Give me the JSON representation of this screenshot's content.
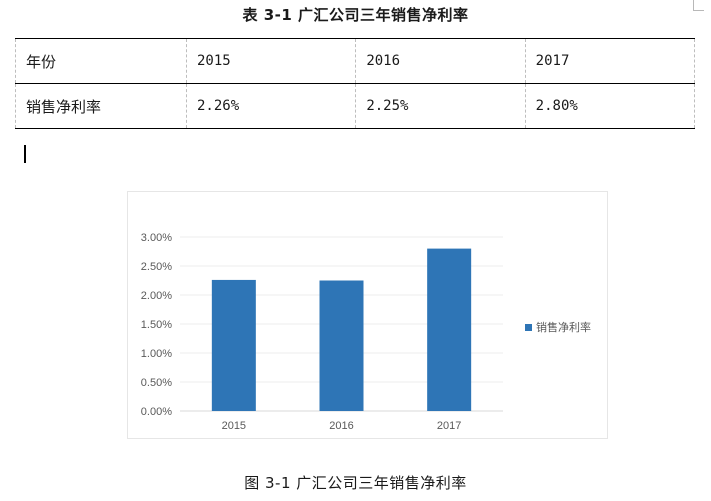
{
  "table": {
    "caption": "表 3-1 广汇公司三年销售净利率",
    "header_label": "年份",
    "row_label": "销售净利率",
    "years": [
      "2015",
      "2016",
      "2017"
    ],
    "rates": [
      "2.26%",
      "2.25%",
      "2.80%"
    ]
  },
  "figure": {
    "caption": "图 3-1 广汇公司三年销售净利率"
  },
  "chart_data": {
    "type": "bar",
    "title": "",
    "xlabel": "",
    "ylabel": "",
    "categories": [
      "2015",
      "2016",
      "2017"
    ],
    "series": [
      {
        "name": "销售净利率",
        "values": [
          2.26,
          2.25,
          2.8
        ],
        "color": "#2e75b6"
      }
    ],
    "ylim": [
      0,
      3.0
    ],
    "yticks": [
      "0.00%",
      "0.50%",
      "1.00%",
      "1.50%",
      "2.00%",
      "2.50%",
      "3.00%"
    ],
    "grid": true,
    "legend": "right"
  }
}
